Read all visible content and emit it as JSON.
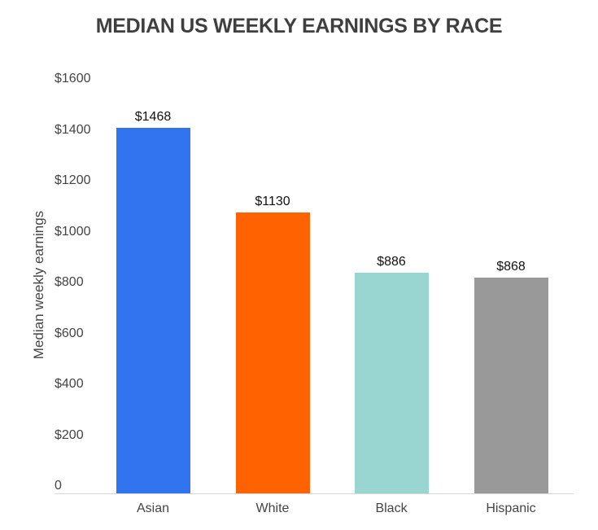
{
  "chart_data": {
    "type": "bar",
    "title": "MEDIAN US WEEKLY EARNINGS BY RACE",
    "xlabel": "",
    "ylabel": "Median weekly earnings",
    "categories": [
      "Asian",
      "White",
      "Black",
      "Hispanic"
    ],
    "values": [
      1468,
      1130,
      886,
      868
    ],
    "data_labels": [
      "$1468",
      "$1130",
      "$886",
      "$868"
    ],
    "colors": [
      "#3274ef",
      "#ff6200",
      "#9ad6d1",
      "#999999"
    ],
    "ylim": [
      0,
      1600
    ],
    "yticks": [
      "0",
      "$200",
      "$400",
      "$600",
      "$800",
      "$1000",
      "$1200",
      "$1400",
      "$1600"
    ],
    "grid": false,
    "legend": null
  }
}
